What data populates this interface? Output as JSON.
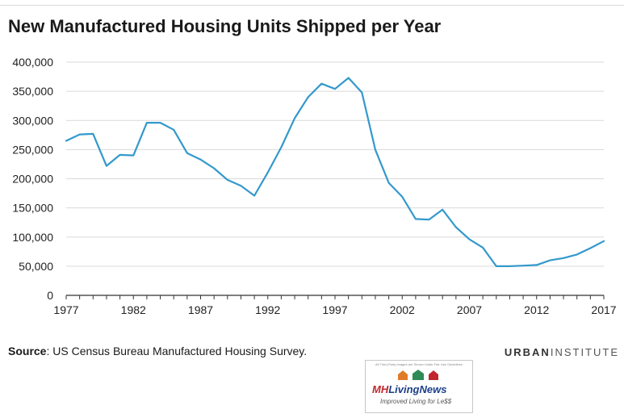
{
  "header": {
    "title": "New Manufactured Housing Units Shipped per Year"
  },
  "footer": {
    "source_label": "Source",
    "source_text": ": US Census Bureau Manufactured Housing Survey.",
    "brand_part1": "URBAN",
    "brand_part2": "INSTITUTE"
  },
  "watermark": {
    "note": "All Third-Party Images are Shown Under Fair Use Guidelines",
    "name_part1": "MH",
    "name_part2": "LivingNews",
    "tagline": "Improved Living for Le$$"
  },
  "colors": {
    "line": "#3399cc",
    "grid": "#d9d9d9",
    "axis": "#333333"
  },
  "chart_data": {
    "type": "line",
    "title": "New Manufactured Housing Units Shipped per Year",
    "xlabel": "",
    "ylabel": "",
    "xlim": [
      1977,
      2017
    ],
    "ylim": [
      0,
      400000
    ],
    "x_ticks": [
      1977,
      1982,
      1987,
      1992,
      1997,
      2002,
      2007,
      2012,
      2017
    ],
    "y_ticks": [
      0,
      50000,
      100000,
      150000,
      200000,
      250000,
      300000,
      350000,
      400000
    ],
    "y_tick_labels": [
      "0",
      "50,000",
      "100,000",
      "150,000",
      "200,000",
      "250,000",
      "300,000",
      "350,000",
      "400,000"
    ],
    "grid": "horizontal",
    "series": [
      {
        "x": [
          1977,
          1978,
          1979,
          1980,
          1981,
          1982,
          1983,
          1984,
          1985,
          1986,
          1987,
          1988,
          1989,
          1990,
          1991,
          1992,
          1993,
          1994,
          1995,
          1996,
          1997,
          1998,
          1999,
          2000,
          2001,
          2002,
          2003,
          2004,
          2005,
          2006,
          2007,
          2008,
          2009,
          2010,
          2011,
          2012,
          2013,
          2014,
          2015,
          2016,
          2017
        ],
        "y": [
          265000,
          276000,
          277000,
          222000,
          241000,
          240000,
          296000,
          296000,
          284000,
          244000,
          233000,
          218000,
          198000,
          188000,
          171000,
          211000,
          254000,
          304000,
          340000,
          363000,
          354000,
          373000,
          348000,
          250000,
          193000,
          169000,
          131000,
          130000,
          147000,
          117000,
          96000,
          82000,
          50000,
          50000,
          51000,
          52000,
          60000,
          64000,
          70000,
          81000,
          93000
        ]
      }
    ]
  }
}
